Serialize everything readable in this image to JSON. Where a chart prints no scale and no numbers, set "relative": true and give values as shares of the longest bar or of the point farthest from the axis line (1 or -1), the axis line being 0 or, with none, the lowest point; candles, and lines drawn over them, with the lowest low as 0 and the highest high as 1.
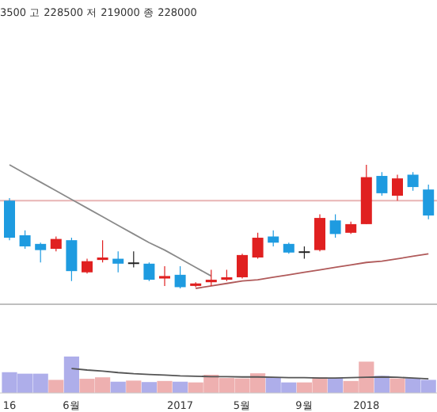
{
  "chart_data": [
    {
      "type": "candlestick",
      "relative": true,
      "annotations": [
        "3500 고 228500 저 219000 종 228000"
      ],
      "categories": [
        null,
        null,
        null,
        null,
        null,
        null,
        null,
        null,
        null,
        null,
        null,
        null,
        null,
        null,
        null,
        null,
        null,
        null,
        null,
        null,
        null,
        null,
        null,
        null,
        null,
        null,
        null,
        null
      ],
      "ohlc": [
        [
          0.71,
          0.73,
          0.39,
          0.41
        ],
        [
          0.43,
          0.47,
          0.32,
          0.34
        ],
        [
          0.36,
          0.37,
          0.21,
          0.31
        ],
        [
          0.32,
          0.42,
          0.3,
          0.4
        ],
        [
          0.39,
          0.41,
          0.06,
          0.14
        ],
        [
          0.13,
          0.24,
          0.12,
          0.22
        ],
        [
          0.23,
          0.39,
          0.21,
          0.25
        ],
        [
          0.24,
          0.3,
          0.13,
          0.2
        ],
        [
          0.21,
          0.3,
          0.17,
          0.21
        ],
        [
          0.2,
          0.21,
          0.06,
          0.07
        ],
        [
          0.08,
          0.18,
          0.02,
          0.1
        ],
        [
          0.11,
          0.18,
          0.0,
          0.01
        ],
        [
          0.02,
          0.05,
          0.01,
          0.04
        ],
        [
          0.05,
          0.15,
          0.02,
          0.07
        ],
        [
          0.07,
          0.15,
          0.06,
          0.09
        ],
        [
          0.09,
          0.28,
          0.08,
          0.27
        ],
        [
          0.25,
          0.45,
          0.24,
          0.41
        ],
        [
          0.42,
          0.47,
          0.34,
          0.37
        ],
        [
          0.36,
          0.37,
          0.28,
          0.29
        ],
        [
          0.3,
          0.34,
          0.24,
          0.3
        ],
        [
          0.31,
          0.6,
          0.3,
          0.57
        ],
        [
          0.55,
          0.6,
          0.41,
          0.44
        ],
        [
          0.45,
          0.54,
          0.44,
          0.52
        ],
        [
          0.52,
          1.0,
          0.52,
          0.9
        ],
        [
          0.91,
          0.94,
          0.75,
          0.77
        ],
        [
          0.75,
          0.92,
          0.71,
          0.89
        ],
        [
          0.92,
          0.94,
          0.79,
          0.82
        ],
        [
          0.8,
          0.84,
          0.56,
          0.59
        ]
      ],
      "colors": [
        "#1e9be0",
        "#1e9be0",
        "#1e9be0",
        "#e02020",
        "#1e9be0",
        "#e02020",
        "#e02020",
        "#1e9be0",
        "#222222",
        "#1e9be0",
        "#e02020",
        "#1e9be0",
        "#e02020",
        "#e02020",
        "#e02020",
        "#e02020",
        "#e02020",
        "#1e9be0",
        "#1e9be0",
        "#222222",
        "#e02020",
        "#1e9be0",
        "#e02020",
        "#e02020",
        "#1e9be0",
        "#e02020",
        "#1e9be0",
        "#1e9be0"
      ],
      "series": [
        {
          "type": "line",
          "values": [
            1.0,
            0.93,
            0.86,
            0.79,
            0.72,
            0.65,
            0.58,
            0.51,
            0.44,
            0.37,
            0.31,
            0.24,
            0.17,
            0.1,
            null,
            null,
            null,
            null,
            null,
            null,
            null,
            null,
            null,
            null,
            null,
            null,
            null,
            null
          ],
          "color": "#8a8a8a"
        },
        {
          "type": "line",
          "values": [
            null,
            null,
            null,
            null,
            null,
            null,
            null,
            null,
            null,
            null,
            null,
            null,
            0.0,
            0.02,
            0.04,
            0.06,
            0.07,
            0.09,
            0.11,
            0.13,
            0.15,
            0.17,
            0.19,
            0.21,
            0.22,
            0.24,
            0.26,
            0.28
          ],
          "color": "#b05a5a"
        }
      ],
      "ref_lines": [
        {
          "axis": "y",
          "value": 0.71,
          "color": "#e8b4b4"
        }
      ]
    },
    {
      "type": "bar",
      "relative": true,
      "categories": [
        "16",
        null,
        null,
        null,
        "6월",
        null,
        null,
        null,
        null,
        null,
        null,
        "2017",
        null,
        null,
        null,
        "5월",
        null,
        null,
        null,
        "9월",
        null,
        null,
        null,
        "2018",
        null,
        null,
        null,
        null
      ],
      "series": [
        {
          "type": "bar",
          "values": [
            0.57,
            0.53,
            0.53,
            0.36,
            1.0,
            0.39,
            0.43,
            0.31,
            0.34,
            0.3,
            0.33,
            0.31,
            0.29,
            0.5,
            0.41,
            0.4,
            0.54,
            0.43,
            0.29,
            0.29,
            0.43,
            0.41,
            0.33,
            0.86,
            0.47,
            0.4,
            0.4,
            0.36
          ],
          "colors": [
            "#aeaeea",
            "#aeaeea",
            "#aeaeea",
            "#eeb0b0",
            "#aeaeea",
            "#eeb0b0",
            "#eeb0b0",
            "#aeaeea",
            "#eeb0b0",
            "#aeaeea",
            "#eeb0b0",
            "#aeaeea",
            "#eeb0b0",
            "#eeb0b0",
            "#eeb0b0",
            "#eeb0b0",
            "#eeb0b0",
            "#aeaeea",
            "#aeaeea",
            "#eeb0b0",
            "#eeb0b0",
            "#aeaeea",
            "#eeb0b0",
            "#eeb0b0",
            "#aeaeea",
            "#eeb0b0",
            "#aeaeea",
            "#aeaeea"
          ]
        },
        {
          "type": "line",
          "values": [
            null,
            null,
            null,
            null,
            0.67,
            0.63,
            0.6,
            0.56,
            0.53,
            0.51,
            0.49,
            0.47,
            0.46,
            0.45,
            0.45,
            0.44,
            0.44,
            0.43,
            0.42,
            0.42,
            0.41,
            0.41,
            0.42,
            0.43,
            0.44,
            0.43,
            0.41,
            0.39
          ],
          "color": "#555555"
        }
      ]
    }
  ]
}
